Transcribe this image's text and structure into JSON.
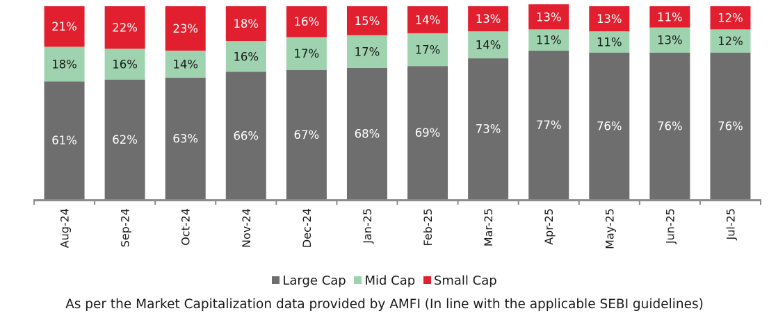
{
  "chart_data": {
    "type": "bar",
    "stacked": true,
    "categories": [
      "Aug-24",
      "Sep-24",
      "Oct-24",
      "Nov-24",
      "Dec-24",
      "Jan-25",
      "Feb-25",
      "Mar-25",
      "Apr-25",
      "May-25",
      "Jun-25",
      "Jul-25"
    ],
    "series": [
      {
        "name": "Large Cap",
        "color": "#6e6e6e",
        "values": [
          61,
          62,
          63,
          66,
          67,
          68,
          69,
          73,
          77,
          76,
          76,
          76
        ]
      },
      {
        "name": "Mid Cap",
        "color": "#9fd3b0",
        "values": [
          18,
          16,
          14,
          16,
          17,
          17,
          17,
          14,
          11,
          11,
          13,
          12
        ]
      },
      {
        "name": "Small Cap",
        "color": "#e21f2e",
        "values": [
          21,
          22,
          23,
          18,
          16,
          15,
          14,
          13,
          13,
          13,
          11,
          12
        ]
      }
    ],
    "data_labels": [
      [
        "61%",
        "62%",
        "63%",
        "66%",
        "67%",
        "68%",
        "69%",
        "73%",
        "77%",
        "76%",
        "76%",
        "76%"
      ],
      [
        "18%",
        "16%",
        "14%",
        "16%",
        "17%",
        "17%",
        "17%",
        "14%",
        "11%",
        "11%",
        "13%",
        "12%"
      ],
      [
        "21%",
        "22%",
        "23%",
        "18%",
        "16%",
        "15%",
        "14%",
        "13%",
        "13%",
        "13%",
        "11%",
        "12%"
      ]
    ],
    "legend_position": "bottom",
    "ylim": [
      0,
      100
    ],
    "grid": false
  },
  "legend": {
    "large_cap": "Large Cap",
    "mid_cap": "Mid Cap",
    "small_cap": "Small Cap"
  },
  "footnote": "As per the Market Capitalization data provided by AMFI (In line with the applicable SEBI guidelines)"
}
